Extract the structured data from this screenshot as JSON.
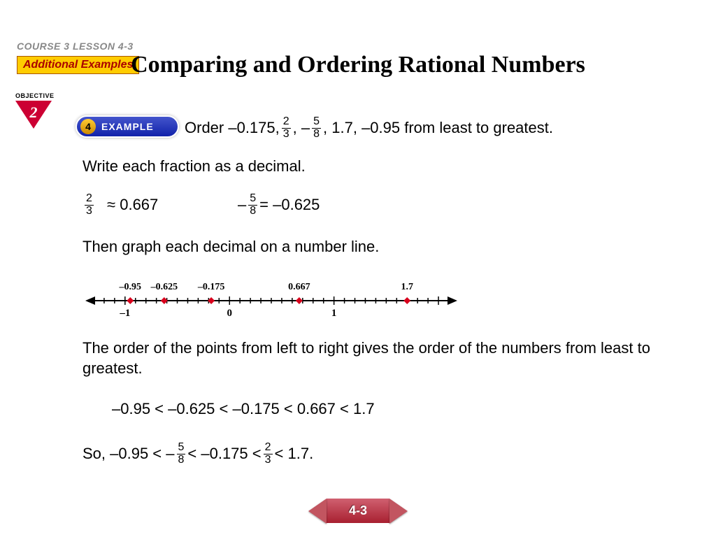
{
  "header": {
    "course_lesson": "COURSE 3  LESSON 4-3",
    "additional_examples": "Additional Examples",
    "title": "Comparing and Ordering Rational Numbers"
  },
  "objective": {
    "label": "OBJECTIVE",
    "number": "2"
  },
  "example_badge": {
    "number": "4",
    "label": "EXAMPLE"
  },
  "prompt": {
    "a": "Order –0.175, ",
    "f1": {
      "n": "2",
      "d": "3"
    },
    "b": " , – ",
    "f2": {
      "n": "5",
      "d": "8"
    },
    "c": ", 1.7, –0.95 from least to greatest."
  },
  "lines": {
    "write_decimal": "Write each fraction as a decimal.",
    "approx": " ≈ 0.667",
    "equals": " = –0.625",
    "neg_sign": "– ",
    "graph": "Then graph each decimal on a number line.",
    "order_expl": "The order of the points from left to right gives the order of the numbers from least to greatest.",
    "ineq_decimals": "–0.95 <  –0.625 < –0.175 < 0.667 < 1.7",
    "so_a": "So, –0.95 <    – ",
    "so_b": "   < –0.175 <   ",
    "so_c": "   < 1.7."
  },
  "number_line": {
    "xmin": -1.3,
    "xmax": 2.1,
    "tick_step": 0.1,
    "major_labels": [
      {
        "x": -1,
        "text": "–1"
      },
      {
        "x": 0,
        "text": "0"
      },
      {
        "x": 1,
        "text": "1"
      }
    ],
    "points": [
      {
        "x": -0.95,
        "label": "–0.95"
      },
      {
        "x": -0.625,
        "label": "–0.625"
      },
      {
        "x": -0.175,
        "label": "–0.175"
      },
      {
        "x": 0.667,
        "label": "0.667"
      },
      {
        "x": 1.7,
        "label": "1.7"
      }
    ],
    "point_color": "#d8001c",
    "axis_color": "#000000"
  },
  "nav": {
    "section": "4-3"
  }
}
